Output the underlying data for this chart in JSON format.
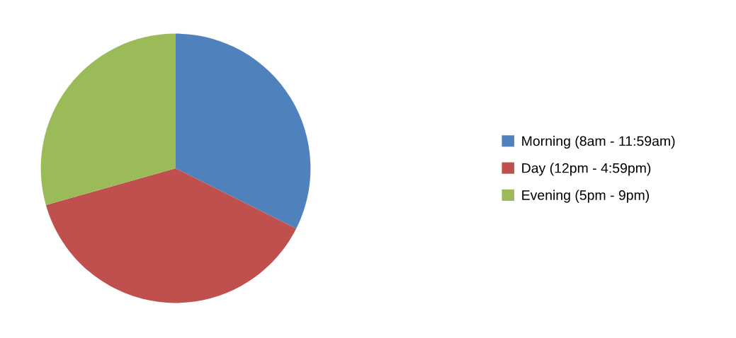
{
  "chart_data": {
    "type": "pie",
    "categories": [
      "Morning (8am - 11:59am)",
      "Day (12pm - 4:59pm)",
      "Evening (5pm - 9pm)"
    ],
    "values": [
      32.4,
      38.2,
      29.4
    ],
    "colors": [
      "#4f81bd",
      "#c0504d",
      "#9bbb59"
    ],
    "legend": "right"
  }
}
